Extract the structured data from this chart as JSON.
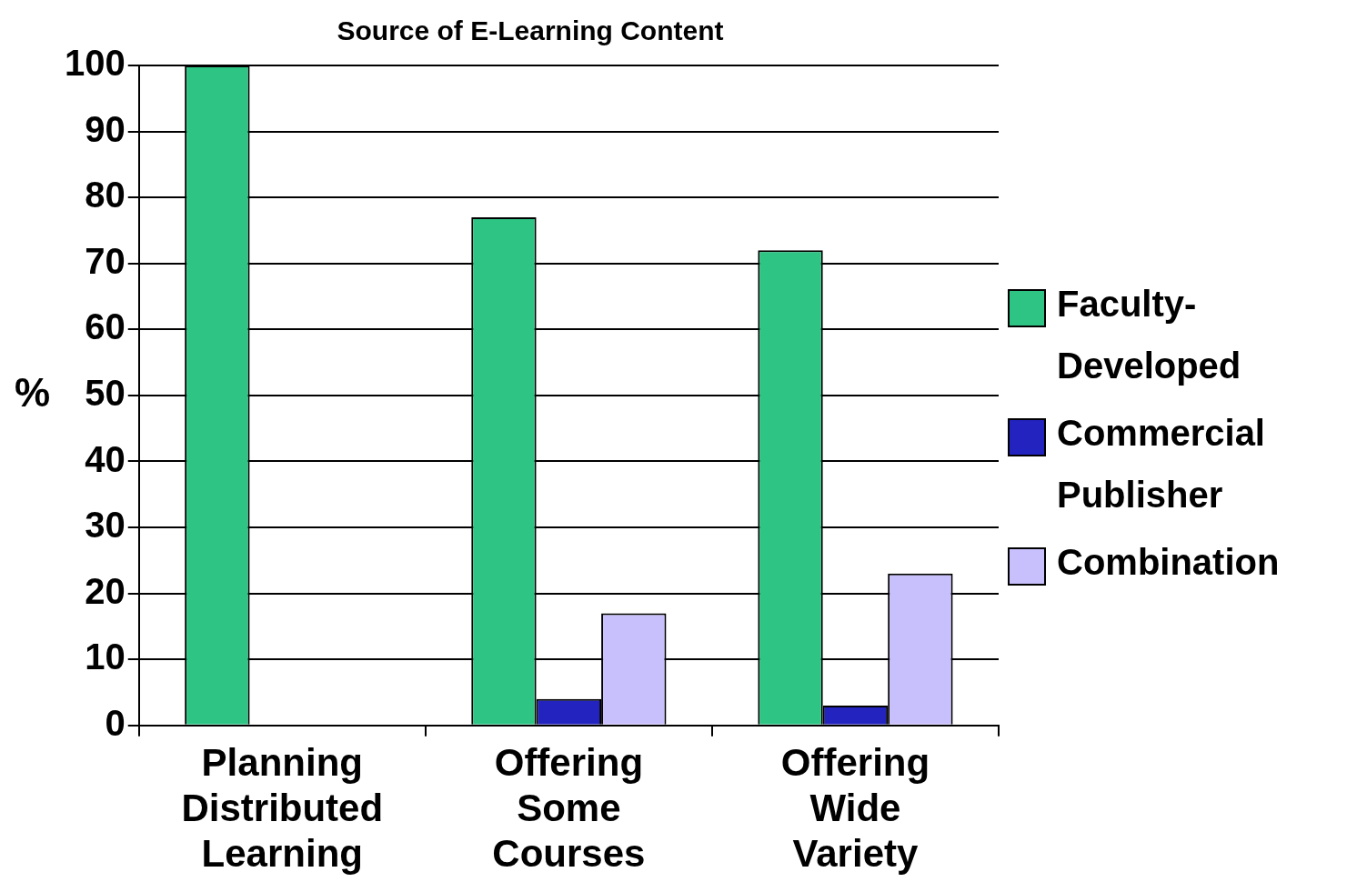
{
  "chart_data": {
    "type": "bar",
    "title": "Source of E-Learning Content",
    "ylabel": "%",
    "categories": [
      "Planning Distributed Learning",
      "Offering Some Courses",
      "Offering Wide Variety"
    ],
    "series": [
      {
        "name": "Faculty-Developed",
        "color": "#2ec584",
        "values": [
          100,
          77,
          72
        ]
      },
      {
        "name": "Commercial Publisher",
        "color": "#2323c0",
        "values": [
          null,
          4,
          3
        ]
      },
      {
        "name": "Combination",
        "color": "#c8c0fc",
        "values": [
          null,
          17,
          23
        ]
      }
    ],
    "ylim": [
      0,
      100
    ],
    "yticks": [
      0,
      10,
      20,
      30,
      40,
      50,
      60,
      70,
      80,
      90,
      100
    ],
    "grid": "y",
    "legend": "right"
  }
}
